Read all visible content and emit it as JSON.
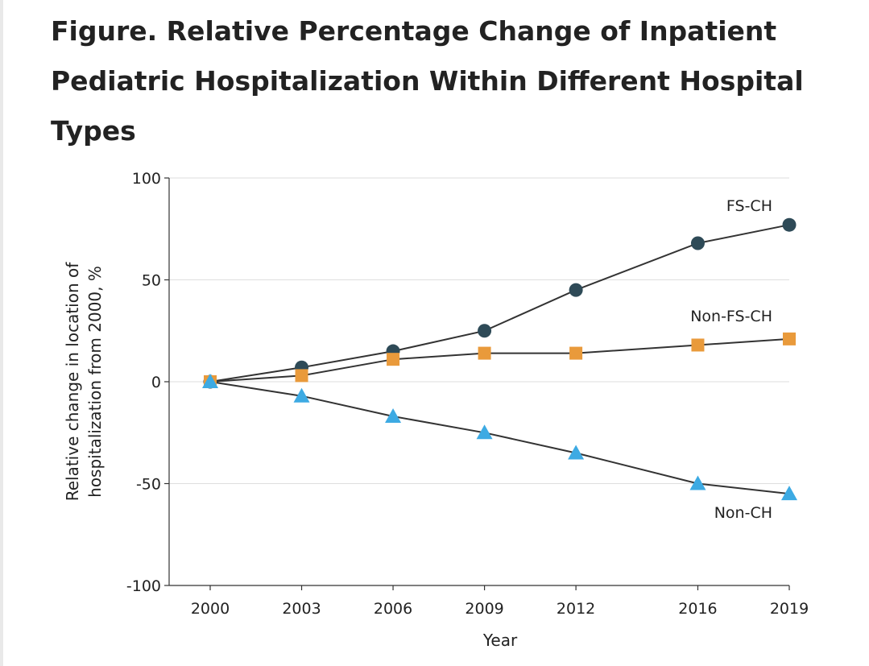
{
  "figure": {
    "title": "Figure.  Relative Percentage Change of Inpatient Pediatric Hospitalization Within Different Hospital Types"
  },
  "chart_data": {
    "type": "line",
    "x": [
      2000,
      2003,
      2006,
      2009,
      2012,
      2016,
      2019
    ],
    "xlabel": "Year",
    "ylabel_lines": [
      "Relative change in location of",
      "hospitalization from 2000, %"
    ],
    "ylim": [
      -100,
      100
    ],
    "yticks": [
      100,
      50,
      0,
      -50,
      -100
    ],
    "yticklabels": [
      "100",
      "50",
      "0",
      "-50",
      "-100"
    ],
    "xticklabels": [
      "2000",
      "2003",
      "2006",
      "2009",
      "2012",
      "2016",
      "2019"
    ],
    "grid": "horizontal",
    "series": [
      {
        "name": "FS-CH",
        "marker": "circle",
        "color": "#2e4a57",
        "values": [
          0,
          7,
          15,
          25,
          45,
          68,
          77
        ]
      },
      {
        "name": "Non-FS-CH",
        "marker": "square",
        "color": "#e99a3b",
        "values": [
          0,
          3,
          11,
          14,
          14,
          18,
          21
        ]
      },
      {
        "name": "Non-CH",
        "marker": "triangle",
        "color": "#3daae3",
        "values": [
          0,
          -7,
          -17,
          -25,
          -35,
          -50,
          -55
        ]
      }
    ],
    "line_color": "#333333"
  }
}
